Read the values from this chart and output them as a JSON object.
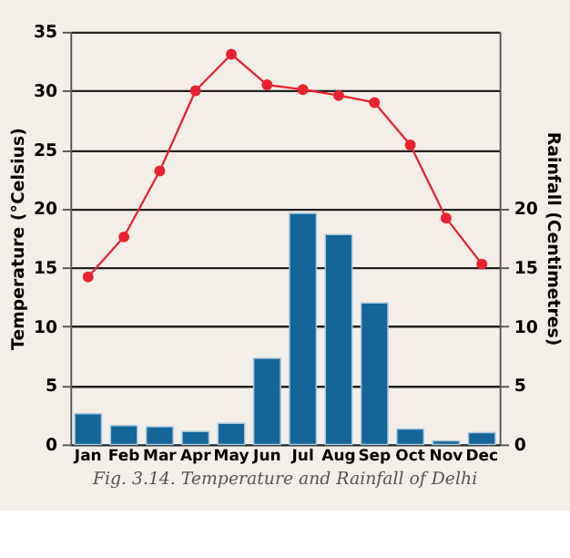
{
  "chart_data": {
    "type": "bar",
    "categories": [
      "Jan",
      "Feb",
      "Mar",
      "Apr",
      "May",
      "Jun",
      "Jul",
      "Aug",
      "Sep",
      "Oct",
      "Nov",
      "Dec"
    ],
    "series": [
      {
        "axis": "y2",
        "color": "#14669a",
        "values": [
          2.6,
          1.6,
          1.5,
          1.1,
          1.8,
          7.3,
          19.6,
          17.8,
          12.0,
          1.3,
          0.3,
          1.0
        ]
      },
      {
        "type": "line",
        "color": "#e8222e",
        "marker": "circle",
        "line_style": "solid",
        "values": [
          14.2,
          17.6,
          23.2,
          30.0,
          33.1,
          30.5,
          30.1,
          29.6,
          29.0,
          25.4,
          19.2,
          15.3
        ]
      }
    ],
    "ylabel": "Temperature (°Celsius)",
    "y2label": "Rainfall (Centimetres)",
    "ylim": [
      0,
      35
    ],
    "yticks": [
      0,
      5,
      10,
      15,
      20,
      25,
      30,
      35
    ],
    "y2lim": [
      0,
      35
    ],
    "y2ticks": [
      0,
      5,
      10,
      15,
      20
    ],
    "grid": "y",
    "annotations": [
      "Fig. 3.14. Temperature and Rainfall of Delhi"
    ]
  }
}
